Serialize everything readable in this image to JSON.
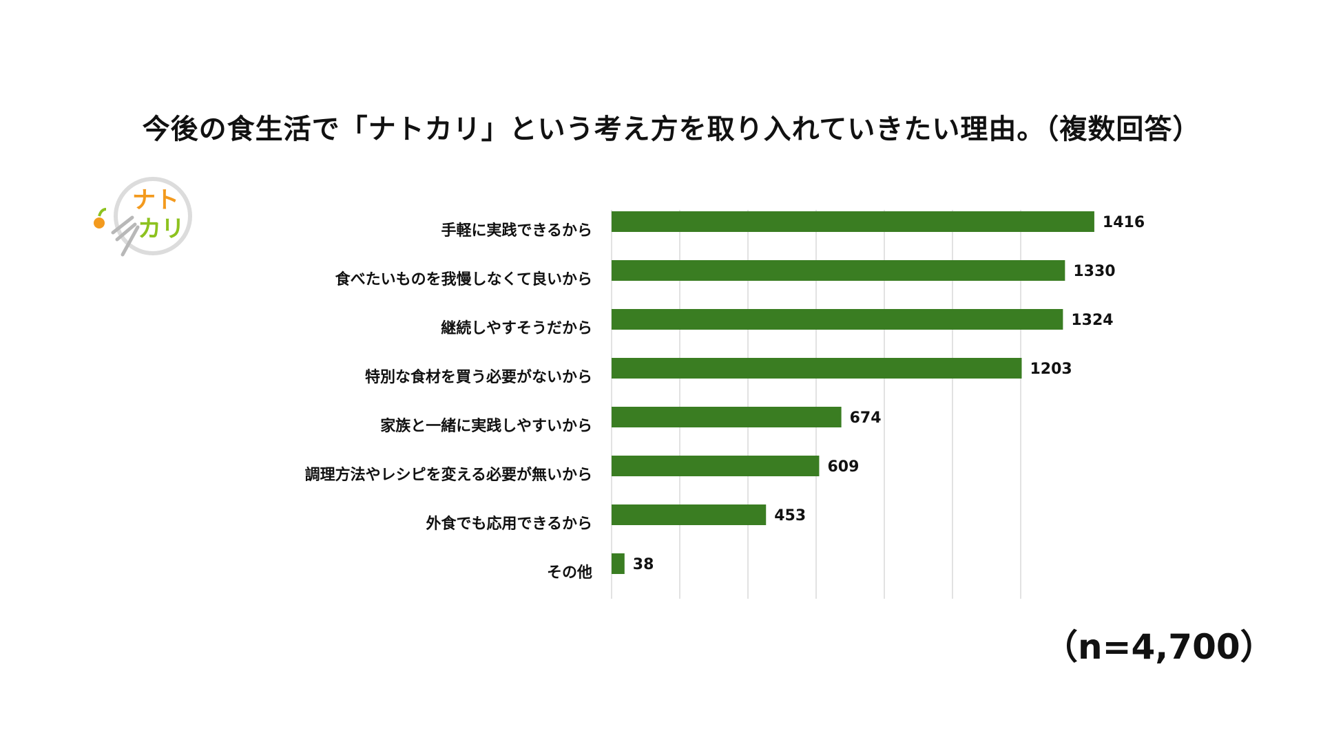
{
  "title": "今後の食生活で「ナトカリ」という考え方を取り入れていきたい理由。（複数回答）",
  "logo": {
    "text_line1": "ナト",
    "text_line2": "カリ",
    "icon": "fork-and-vegetable-icon"
  },
  "sample_size": "（n=4,700）",
  "colors": {
    "bar": "#3a7d22",
    "grid": "#d9d9d9",
    "logo_orange": "#f39a1e",
    "logo_green": "#8dc21f",
    "logo_circle": "#dcdcdc"
  },
  "chart_data": {
    "type": "bar",
    "orientation": "horizontal",
    "categories": [
      "手軽に実践できるから",
      "食べたいものを我慢しなくて良いから",
      "継続しやすそうだから",
      "特別な食材を買う必要がないから",
      "家族と一緒に実践しやすいから",
      "調理方法やレシピを変える必要が無いから",
      "外食でも応用できるから",
      "その他"
    ],
    "values": [
      1416,
      1330,
      1324,
      1203,
      674,
      609,
      453,
      38
    ],
    "xlim": [
      0,
      1600
    ],
    "grid": true,
    "data_labels": true
  }
}
